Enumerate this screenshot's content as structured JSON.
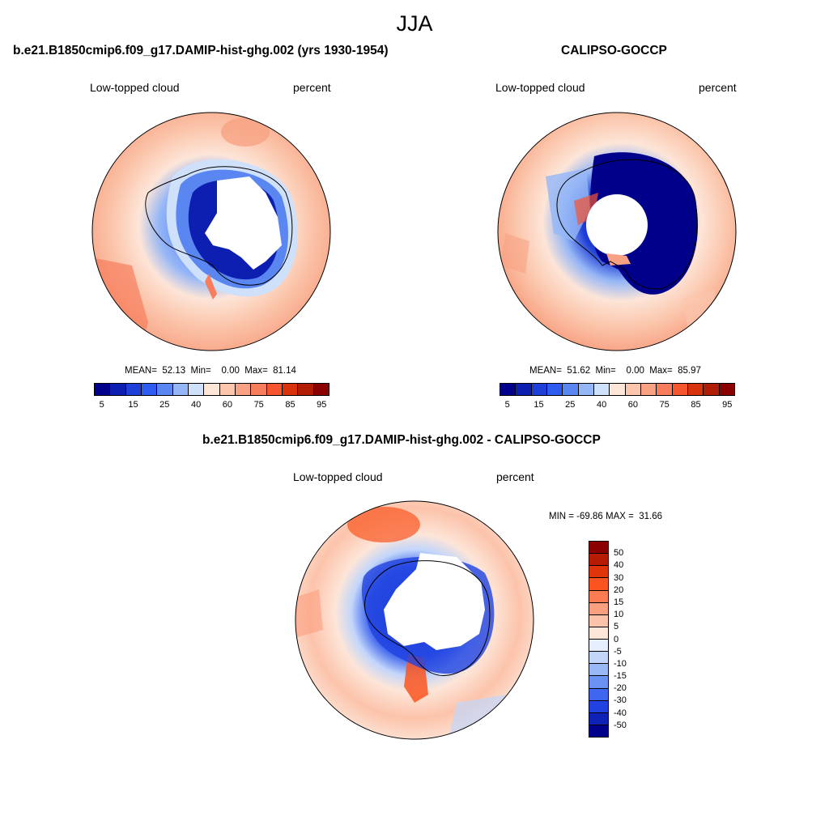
{
  "main_title": "JJA",
  "panels": {
    "model": {
      "title": "b.e21.B1850cmip6.f09_g17.DAMIP-hist-ghg.002 (yrs 1930-1954)",
      "left_label": "Low-topped cloud",
      "right_label": "percent",
      "stats": "MEAN=  52.13  Min=    0.00  Max=  81.14"
    },
    "obs": {
      "title": "CALIPSO-GOCCP",
      "left_label": "Low-topped cloud",
      "right_label": "percent",
      "stats": "MEAN=  51.62  Min=    0.00  Max=  85.97"
    },
    "diff": {
      "title": "b.e21.B1850cmip6.f09_g17.DAMIP-hist-ghg.002 - CALIPSO-GOCCP",
      "left_label": "Low-topped cloud",
      "right_label": "percent",
      "stats": "MIN = -69.86 MAX =  31.66"
    }
  },
  "colorbar_abs": {
    "colors": [
      "#00008b",
      "#0d1fb0",
      "#1f3fd6",
      "#2f5cf0",
      "#5a86f2",
      "#95b6f6",
      "#cfe0fb",
      "#fde5d8",
      "#fbc6ac",
      "#f8a283",
      "#f77d5c",
      "#f55630",
      "#d9330e",
      "#b01c04",
      "#8b0000"
    ],
    "labels": [
      "5",
      "15",
      "25",
      "40",
      "60",
      "75",
      "85",
      "95"
    ]
  },
  "colorbar_diff": {
    "colors": [
      "#8b0000",
      "#b81b04",
      "#e0340a",
      "#fa5520",
      "#fb7b52",
      "#fb9f7f",
      "#fcc3aa",
      "#fde5d8",
      "#e6effd",
      "#c2d6fa",
      "#98b8f6",
      "#6a92f3",
      "#3f66ee",
      "#2142e0",
      "#0f22b6",
      "#00008b"
    ],
    "labels": [
      "50",
      "40",
      "30",
      "20",
      "15",
      "10",
      "5",
      "0",
      "-5",
      "-10",
      "-15",
      "-20",
      "-30",
      "-40",
      "-50"
    ]
  }
}
